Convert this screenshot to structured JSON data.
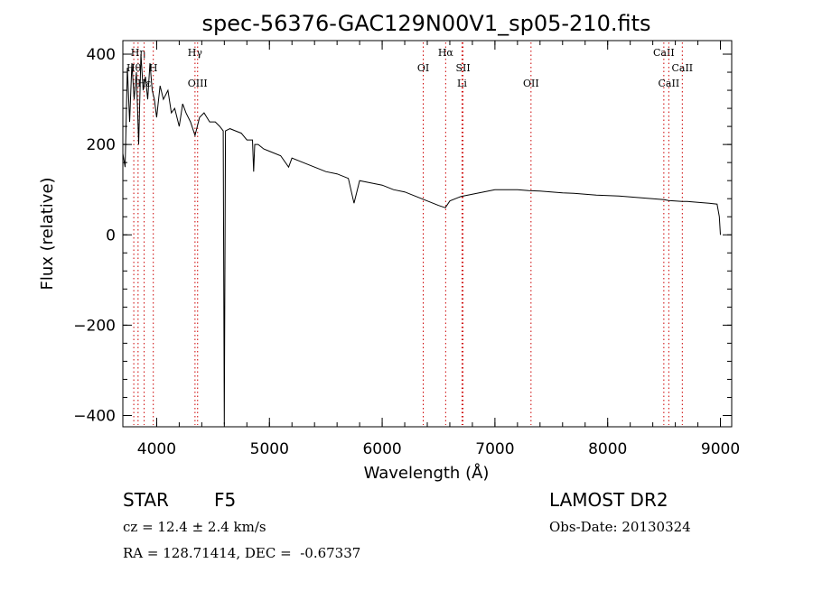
{
  "chart_data": {
    "type": "line",
    "title": "spec-56376-GAC129N00V1_sp05-210.fits",
    "xlabel": "Wavelength (Å)",
    "ylabel": "Flux (relative)",
    "xlim": [
      3700,
      9100
    ],
    "ylim": [
      -425,
      430
    ],
    "xticks": [
      4000,
      5000,
      6000,
      7000,
      8000,
      9000
    ],
    "yticks": [
      -400,
      -200,
      0,
      200,
      400
    ],
    "x": [
      3700,
      3720,
      3740,
      3760,
      3780,
      3800,
      3820,
      3840,
      3860,
      3880,
      3900,
      3920,
      3940,
      3960,
      3980,
      4000,
      4030,
      4060,
      4100,
      4130,
      4160,
      4200,
      4230,
      4260,
      4300,
      4340,
      4380,
      4420,
      4470,
      4520,
      4560,
      4590,
      4600,
      4610,
      4650,
      4700,
      4750,
      4800,
      4850,
      4860,
      4870,
      4900,
      4950,
      5000,
      5100,
      5170,
      5200,
      5300,
      5400,
      5500,
      5600,
      5700,
      5750,
      5800,
      5900,
      6000,
      6100,
      6200,
      6300,
      6400,
      6500,
      6560,
      6600,
      6700,
      6800,
      6900,
      7000,
      7100,
      7200,
      7300,
      7400,
      7500,
      7600,
      7700,
      7800,
      7900,
      8000,
      8100,
      8200,
      8300,
      8400,
      8500,
      8540,
      8600,
      8660,
      8700,
      8800,
      8900,
      8970,
      8990,
      9000
    ],
    "y": [
      180,
      150,
      370,
      250,
      380,
      300,
      360,
      200,
      400,
      320,
      350,
      300,
      380,
      320,
      300,
      260,
      330,
      300,
      320,
      270,
      280,
      240,
      290,
      270,
      250,
      220,
      260,
      270,
      250,
      250,
      240,
      230,
      -420,
      230,
      235,
      230,
      225,
      210,
      210,
      140,
      200,
      200,
      190,
      185,
      175,
      150,
      170,
      160,
      150,
      140,
      135,
      125,
      70,
      120,
      115,
      110,
      100,
      95,
      85,
      75,
      65,
      60,
      75,
      85,
      90,
      95,
      100,
      100,
      100,
      98,
      97,
      95,
      93,
      92,
      90,
      88,
      87,
      86,
      84,
      82,
      80,
      78,
      76,
      75,
      74,
      74,
      72,
      70,
      68,
      40,
      0
    ],
    "line_markers": [
      {
        "label": "Hη",
        "x": 3835,
        "row": 1
      },
      {
        "label": "Hθ",
        "x": 3797,
        "row": 2
      },
      {
        "label": "Hε",
        "x": 3889,
        "row": 3
      },
      {
        "label": "H",
        "x": 3970,
        "row": 2
      },
      {
        "label": "Hγ",
        "x": 4340,
        "row": 1
      },
      {
        "label": "OIII",
        "x": 4363,
        "row": 3
      },
      {
        "label": "OI",
        "x": 6364,
        "row": 2
      },
      {
        "label": "Hα",
        "x": 6563,
        "row": 1
      },
      {
        "label": "SII",
        "x": 6717,
        "row": 2
      },
      {
        "label": "Li",
        "x": 6708,
        "row": 3
      },
      {
        "label": "OII",
        "x": 7320,
        "row": 3
      },
      {
        "label": "CaII",
        "x": 8498,
        "row": 1
      },
      {
        "label": "CaII",
        "x": 8662,
        "row": 2
      },
      {
        "label": "CaII",
        "x": 8542,
        "row": 3
      }
    ]
  },
  "info": {
    "class": "STAR",
    "subclass": "F5",
    "survey": "LAMOST DR2",
    "cz": "cz = 12.4 ± 2.4 km/s",
    "obs_date": "Obs-Date: 20130324",
    "radec": "RA = 128.71414, DEC =  -0.67337"
  },
  "colors": {
    "line": "#000000",
    "marker": "#cc0000"
  }
}
